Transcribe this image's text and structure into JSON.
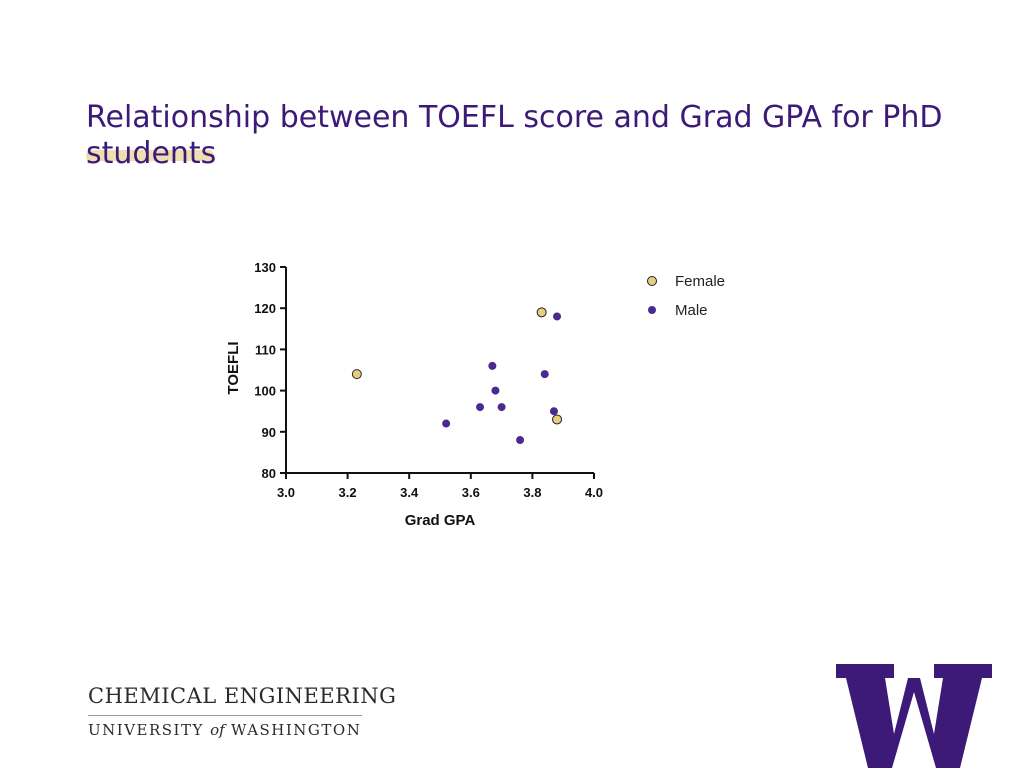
{
  "slide": {
    "title": "Relationship between TOEFL score and Grad GPA for PhD students"
  },
  "colors": {
    "title": "#3d1a78",
    "female": "#e8cd80",
    "male": "#4b2a8f",
    "title_underline": "#e8d49a",
    "logo": "#3d1a78"
  },
  "chart_data": {
    "type": "scatter",
    "xlabel": "Grad GPA",
    "ylabel": "TOEFLI",
    "xlim": [
      3.0,
      4.0
    ],
    "ylim": [
      80,
      130
    ],
    "xticks": [
      "3.0",
      "3.2",
      "3.4",
      "3.6",
      "3.8",
      "4.0"
    ],
    "yticks": [
      "80",
      "90",
      "100",
      "110",
      "120",
      "130"
    ],
    "grid": false,
    "legend_position": "top-right",
    "series": [
      {
        "name": "Female",
        "color": "#e8cd80",
        "points": [
          [
            3.23,
            104
          ],
          [
            3.83,
            119
          ],
          [
            3.88,
            93
          ]
        ]
      },
      {
        "name": "Male",
        "color": "#4b2a8f",
        "points": [
          [
            3.52,
            92
          ],
          [
            3.63,
            96
          ],
          [
            3.67,
            106
          ],
          [
            3.68,
            100
          ],
          [
            3.7,
            96
          ],
          [
            3.76,
            88
          ],
          [
            3.84,
            104
          ],
          [
            3.87,
            95
          ],
          [
            3.88,
            118
          ]
        ]
      }
    ]
  },
  "footer": {
    "dept": "CHEMICAL ENGINEERING",
    "univ_before": "UNIVERSITY ",
    "univ_of": "of",
    "univ_after": " WASHINGTON",
    "logo_icon": "uw-w-logo-icon"
  }
}
